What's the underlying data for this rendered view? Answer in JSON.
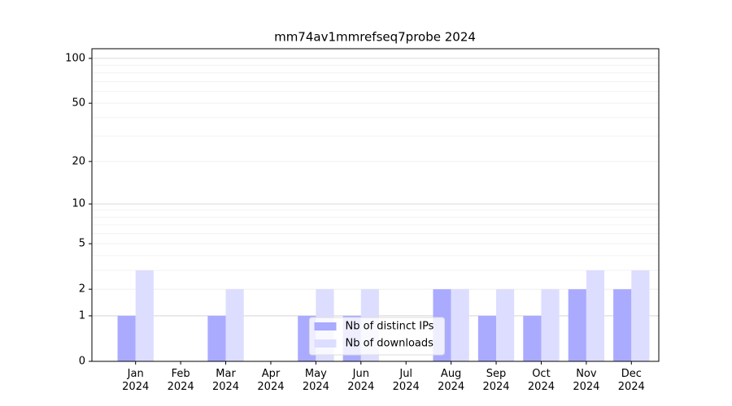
{
  "chart_data": {
    "type": "bar",
    "title": "mm74av1mmrefseq7probe 2024",
    "categories": [
      "Jan\n2024",
      "Feb\n2024",
      "Mar\n2024",
      "Apr\n2024",
      "May\n2024",
      "Jun\n2024",
      "Jul\n2024",
      "Aug\n2024",
      "Sep\n2024",
      "Oct\n2024",
      "Nov\n2024",
      "Dec\n2024"
    ],
    "series": [
      {
        "name": "Nb of distinct IPs",
        "color": "#aaaaff",
        "values": [
          1,
          0,
          1,
          0,
          1,
          1,
          0,
          2,
          1,
          1,
          2,
          2
        ]
      },
      {
        "name": "Nb of downloads",
        "color": "#ddddff",
        "values": [
          3,
          0,
          2,
          0,
          2,
          2,
          0,
          2,
          2,
          2,
          3,
          3
        ]
      }
    ],
    "yscale": "log1p",
    "ylim": [
      0,
      116
    ],
    "yticks": [
      0,
      1,
      2,
      5,
      10,
      20,
      50,
      100
    ],
    "minor_yticks": [
      3,
      4,
      6,
      7,
      8,
      9,
      30,
      40,
      60,
      70,
      80,
      90
    ],
    "grid": true,
    "legend": "lower center"
  }
}
